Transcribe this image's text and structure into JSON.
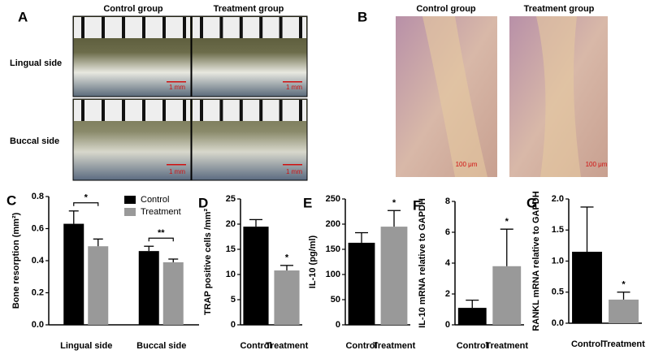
{
  "photo_panels": [
    {
      "letter": "A",
      "columns": [
        "Control group",
        "Treatment group"
      ],
      "rows": [
        "Lingual side",
        "Buccal side"
      ],
      "scale_labels": [
        "1 mm",
        "1 mm",
        "1 mm",
        "1 mm"
      ]
    },
    {
      "letter": "B",
      "columns": [
        "Control group",
        "Treatment group"
      ],
      "scale_labels": [
        "100 μm",
        "100 μm"
      ]
    }
  ],
  "chart_data": [
    {
      "type": "bar",
      "panel_label": "C",
      "y_label": "Bone resorption (mm²)",
      "categories": [
        "Lingual side",
        "Buccal side"
      ],
      "series": [
        {
          "name": "Control",
          "color": "#000000",
          "values": [
            0.63,
            0.46
          ],
          "errors": [
            0.08,
            0.03
          ]
        },
        {
          "name": "Treatment",
          "color": "#999999",
          "values": [
            0.49,
            0.39
          ],
          "errors": [
            0.045,
            0.02
          ]
        }
      ],
      "ylim": [
        0,
        0.8
      ],
      "yticks": [
        {
          "value": 0,
          "label": "0.0"
        },
        0.2,
        0.4,
        0.6,
        0.8
      ],
      "legend": "top-right",
      "annotations": [
        "*",
        "**"
      ]
    },
    {
      "type": "bar",
      "panel_label": "D",
      "y_label": "TRAP positive cells /mm²",
      "categories": [
        "Control",
        "Treatment"
      ],
      "values": [
        19.5,
        10.8
      ],
      "errors": [
        1.4,
        1.0
      ],
      "colors": [
        "#000000",
        "#999999"
      ],
      "ylim": [
        0,
        25
      ],
      "yticks": [
        0,
        5,
        10,
        15,
        20,
        25
      ],
      "annotations": [
        "*"
      ]
    },
    {
      "type": "bar",
      "panel_label": "E",
      "y_label": "IL-10 (pg/ml)",
      "categories": [
        "Control",
        "Treatment"
      ],
      "values": [
        163,
        195
      ],
      "errors": [
        20,
        32
      ],
      "colors": [
        "#000000",
        "#999999"
      ],
      "ylim": [
        0,
        250
      ],
      "yticks": [
        0,
        50,
        100,
        150,
        200,
        250
      ],
      "annotations": [
        "*"
      ]
    },
    {
      "type": "bar",
      "panel_label": "F",
      "y_label": "IL-10 mRNA relative to GAPDH",
      "categories": [
        "Control",
        "Treatment"
      ],
      "values": [
        1.1,
        3.8
      ],
      "errors": [
        0.5,
        2.4
      ],
      "colors": [
        "#000000",
        "#999999"
      ],
      "ylim": [
        0,
        8
      ],
      "yticks": [
        0,
        2,
        4,
        6,
        8
      ],
      "annotations": [
        "*"
      ]
    },
    {
      "type": "bar",
      "panel_label": "G",
      "y_label": "RANKL mRNA relative to GAPDH",
      "categories": [
        "Control",
        "Treatment"
      ],
      "values": [
        1.15,
        0.38
      ],
      "errors": [
        0.72,
        0.12
      ],
      "colors": [
        "#000000",
        "#999999"
      ],
      "ylim": [
        0,
        2
      ],
      "yticks": [
        {
          "value": 0,
          "label": "0.0"
        },
        0.5,
        {
          "value": 1,
          "label": "1.0"
        },
        1.5,
        {
          "value": 2,
          "label": "2.0"
        }
      ],
      "annotations": [
        "*"
      ]
    }
  ]
}
